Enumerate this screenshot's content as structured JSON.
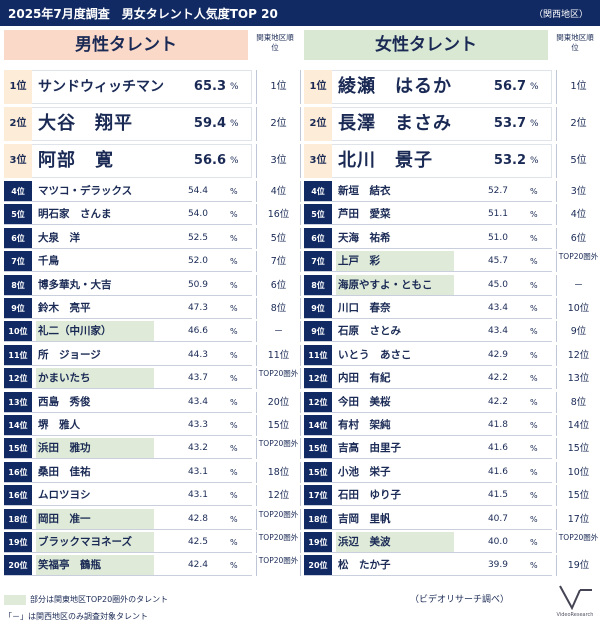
{
  "title": "2025年7月度調査　男女タレント人気度TOP 20",
  "region": "（関西地区）",
  "male": {
    "header": "男性タレント",
    "kanto_label": "関東地区順位",
    "rows": [
      {
        "rank": "1位",
        "name": "サンドウィッチマン",
        "value": "65.3",
        "kanto": "1位",
        "hl": false
      },
      {
        "rank": "2位",
        "name": "大谷　翔平",
        "value": "59.4",
        "kanto": "2位",
        "hl": false
      },
      {
        "rank": "3位",
        "name": "阿部　寛",
        "value": "56.6",
        "kanto": "3位",
        "hl": false
      },
      {
        "rank": "4位",
        "name": "マツコ・デラックス",
        "value": "54.4",
        "kanto": "4位",
        "hl": false
      },
      {
        "rank": "5位",
        "name": "明石家　さんま",
        "value": "54.0",
        "kanto": "16位",
        "hl": false
      },
      {
        "rank": "6位",
        "name": "大泉　洋",
        "value": "52.5",
        "kanto": "5位",
        "hl": false
      },
      {
        "rank": "7位",
        "name": "千鳥",
        "value": "52.0",
        "kanto": "7位",
        "hl": false
      },
      {
        "rank": "8位",
        "name": "博多華丸・大吉",
        "value": "50.9",
        "kanto": "6位",
        "hl": false
      },
      {
        "rank": "9位",
        "name": "鈴木　亮平",
        "value": "47.3",
        "kanto": "8位",
        "hl": false
      },
      {
        "rank": "10位",
        "name": "礼二（中川家）",
        "value": "46.6",
        "kanto": "－",
        "hl": true
      },
      {
        "rank": "11位",
        "name": "所　ジョージ",
        "value": "44.3",
        "kanto": "11位",
        "hl": false
      },
      {
        "rank": "12位",
        "name": "かまいたち",
        "value": "43.7",
        "kanto": "TOP20圏外",
        "hl": true
      },
      {
        "rank": "13位",
        "name": "西島　秀俊",
        "value": "43.4",
        "kanto": "20位",
        "hl": false
      },
      {
        "rank": "14位",
        "name": "堺　雅人",
        "value": "43.3",
        "kanto": "15位",
        "hl": false
      },
      {
        "rank": "15位",
        "name": "浜田　雅功",
        "value": "43.2",
        "kanto": "TOP20圏外",
        "hl": true
      },
      {
        "rank": "16位",
        "name": "桑田　佳祐",
        "value": "43.1",
        "kanto": "18位",
        "hl": false
      },
      {
        "rank": "16位",
        "name": "ムロツヨシ",
        "value": "43.1",
        "kanto": "12位",
        "hl": false
      },
      {
        "rank": "18位",
        "name": "岡田　准一",
        "value": "42.8",
        "kanto": "TOP20圏外",
        "hl": true
      },
      {
        "rank": "19位",
        "name": "ブラックマヨネーズ",
        "value": "42.5",
        "kanto": "TOP20圏外",
        "hl": true
      },
      {
        "rank": "20位",
        "name": "笑福亭　鶴瓶",
        "value": "42.4",
        "kanto": "TOP20圏外",
        "hl": true
      }
    ]
  },
  "female": {
    "header": "女性タレント",
    "kanto_label": "関東地区順位",
    "rows": [
      {
        "rank": "1位",
        "name": "綾瀬　はるか",
        "value": "56.7",
        "kanto": "1位",
        "hl": false
      },
      {
        "rank": "2位",
        "name": "長澤　まさみ",
        "value": "53.7",
        "kanto": "2位",
        "hl": false
      },
      {
        "rank": "3位",
        "name": "北川　景子",
        "value": "53.2",
        "kanto": "5位",
        "hl": false
      },
      {
        "rank": "4位",
        "name": "新垣　結衣",
        "value": "52.7",
        "kanto": "3位",
        "hl": false
      },
      {
        "rank": "5位",
        "name": "芦田　愛菜",
        "value": "51.1",
        "kanto": "4位",
        "hl": false
      },
      {
        "rank": "6位",
        "name": "天海　祐希",
        "value": "51.0",
        "kanto": "6位",
        "hl": false
      },
      {
        "rank": "7位",
        "name": "上戸　彩",
        "value": "45.7",
        "kanto": "TOP20圏外",
        "hl": true
      },
      {
        "rank": "8位",
        "name": "海原やすよ・ともこ",
        "value": "45.0",
        "kanto": "－",
        "hl": true
      },
      {
        "rank": "9位",
        "name": "川口　春奈",
        "value": "43.4",
        "kanto": "10位",
        "hl": false
      },
      {
        "rank": "9位",
        "name": "石原　さとみ",
        "value": "43.4",
        "kanto": "9位",
        "hl": false
      },
      {
        "rank": "11位",
        "name": "いとう　あさこ",
        "value": "42.9",
        "kanto": "12位",
        "hl": false
      },
      {
        "rank": "12位",
        "name": "内田　有紀",
        "value": "42.2",
        "kanto": "13位",
        "hl": false
      },
      {
        "rank": "12位",
        "name": "今田　美桜",
        "value": "42.2",
        "kanto": "8位",
        "hl": false
      },
      {
        "rank": "14位",
        "name": "有村　架純",
        "value": "41.8",
        "kanto": "14位",
        "hl": false
      },
      {
        "rank": "15位",
        "name": "吉高　由里子",
        "value": "41.6",
        "kanto": "15位",
        "hl": false
      },
      {
        "rank": "15位",
        "name": "小池　栄子",
        "value": "41.6",
        "kanto": "10位",
        "hl": false
      },
      {
        "rank": "17位",
        "name": "石田　ゆり子",
        "value": "41.5",
        "kanto": "15位",
        "hl": false
      },
      {
        "rank": "18位",
        "name": "吉岡　里帆",
        "value": "40.7",
        "kanto": "17位",
        "hl": false
      },
      {
        "rank": "19位",
        "name": "浜辺　美波",
        "value": "40.0",
        "kanto": "TOP20圏外",
        "hl": true
      },
      {
        "rank": "20位",
        "name": "松　たか子",
        "value": "39.9",
        "kanto": "19位",
        "hl": false
      }
    ]
  },
  "percent_sign": "%",
  "legend_note": "部分は関東地区TOP20圏外のタレント",
  "dash_note": "「－」は関西地区のみ調査対象タレント",
  "source": "（ビデオリサーチ調べ）",
  "logo_text": "VideoResearch"
}
